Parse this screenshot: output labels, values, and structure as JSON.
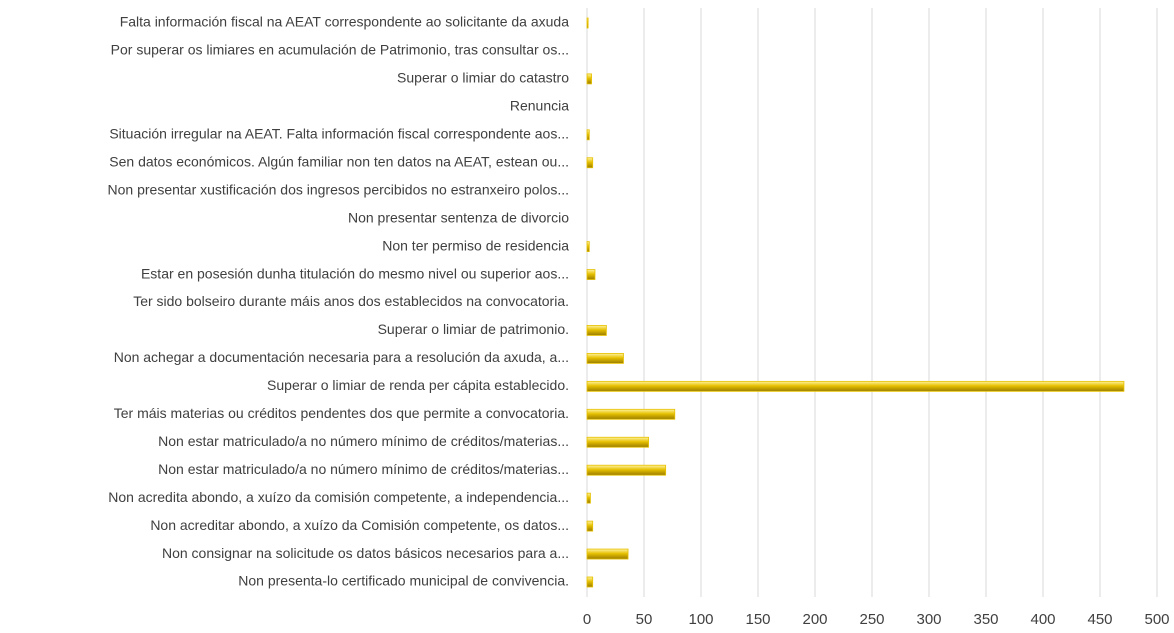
{
  "chart_data": {
    "type": "bar",
    "orientation": "horizontal",
    "categories": [
      "Falta información fiscal na AEAT correspondente ao solicitante da axuda",
      "Por superar os limiares en acumulación de Patrimonio, tras consultar os...",
      "Superar o limiar do catastro",
      "Renuncia",
      "Situación irregular na AEAT. Falta información fiscal correspondente aos...",
      "Sen datos económicos. Algún familiar non ten datos na AEAT, estean ou...",
      "Non presentar xustificación dos ingresos percibidos no estranxeiro polos...",
      "Non presentar sentenza de divorcio",
      "Non ter permiso de residencia",
      "Estar en posesión dunha titulación do mesmo nivel ou superior aos...",
      "Ter sido bolseiro durante máis anos dos establecidos na convocatoria.",
      "Superar o limiar de patrimonio.",
      "Non achegar a documentación necesaria para a resolución da axuda, a...",
      "Superar o limiar de renda per cápita establecido.",
      "Ter máis materias ou créditos pendentes dos que permite a convocatoria.",
      "Non estar matriculado/a no número mínimo de créditos/materias...",
      "Non estar matriculado/a no número mínimo de créditos/materias...",
      "Non acredita abondo, a xuízo da comisión competente, a independencia...",
      "Non acreditar abondo, a xuízo da Comisión competente, os datos...",
      "Non consignar na solicitude os datos básicos necesarios para a...",
      "Non presenta-lo certificado municipal de convivencia."
    ],
    "values": [
      1,
      0,
      4,
      0,
      2,
      5,
      0,
      0,
      2,
      7,
      0,
      17,
      32,
      471,
      77,
      54,
      69,
      3,
      5,
      36,
      5
    ],
    "color": "#e6c000",
    "xlim": [
      0,
      500
    ],
    "xticks": [
      0,
      50,
      100,
      150,
      200,
      250,
      300,
      350,
      400,
      450,
      500
    ],
    "grid": true
  }
}
